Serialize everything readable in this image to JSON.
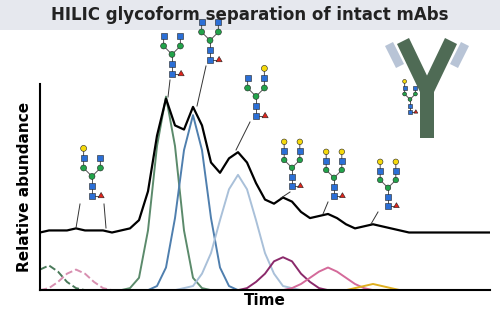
{
  "chart_data": {
    "type": "line",
    "title": "HILIC glycoform separation of intact mAbs",
    "x_label": "Time",
    "y_label": "Relative abundance",
    "x": [
      0,
      2,
      4,
      6,
      8,
      10,
      12,
      14,
      16,
      18,
      20,
      22,
      24,
      26,
      28,
      30,
      32,
      34,
      36,
      38,
      40,
      42,
      44,
      46,
      48,
      50,
      52,
      54,
      56,
      58,
      60,
      62,
      64,
      66,
      68,
      70,
      72,
      74,
      76,
      78,
      80,
      82,
      84,
      86,
      88,
      90,
      92,
      94,
      96,
      98,
      100
    ],
    "xlim": [
      0,
      100
    ],
    "ylim": [
      0,
      100
    ],
    "tick_labels": false,
    "series": [
      {
        "color": "#4a7a5a",
        "line_style": "dashed",
        "values": [
          10,
          12,
          9,
          4,
          1,
          0,
          0,
          0,
          0,
          0,
          0,
          0,
          0,
          0,
          0,
          0,
          0,
          0,
          0,
          0,
          0,
          0,
          0,
          0,
          0,
          0,
          0,
          0,
          0,
          0,
          0,
          0,
          0,
          0,
          0,
          0,
          0,
          0,
          0,
          0,
          0,
          0,
          0,
          0,
          0,
          0,
          0,
          0,
          0,
          0,
          0
        ]
      },
      {
        "color": "#d88fb0",
        "line_style": "dashed",
        "values": [
          0,
          1,
          4,
          8,
          10,
          8,
          4,
          1,
          0,
          0,
          0,
          0,
          0,
          0,
          0,
          0,
          0,
          0,
          0,
          0,
          0,
          0,
          0,
          0,
          0,
          0,
          0,
          0,
          0,
          0,
          0,
          0,
          0,
          0,
          0,
          0,
          0,
          0,
          0,
          0,
          0,
          0,
          0,
          0,
          0,
          0,
          0,
          0,
          0,
          0,
          0
        ]
      },
      {
        "color": "#5b8a6b",
        "line_style": "solid",
        "values": [
          0,
          0,
          0,
          0,
          0,
          0,
          0,
          0,
          0,
          0,
          1,
          6,
          29,
          70,
          94,
          70,
          29,
          6,
          1,
          0,
          0,
          0,
          0,
          0,
          0,
          0,
          0,
          0,
          0,
          0,
          0,
          0,
          0,
          0,
          0,
          0,
          0,
          0,
          0,
          0,
          0,
          0,
          0,
          0,
          0,
          0,
          0,
          0,
          0,
          0,
          0
        ]
      },
      {
        "color": "#4f7fae",
        "line_style": "solid",
        "values": [
          0,
          0,
          0,
          0,
          0,
          0,
          0,
          0,
          0,
          0,
          0,
          0,
          0,
          2,
          11,
          35,
          68,
          85,
          68,
          35,
          11,
          2,
          0,
          0,
          0,
          0,
          0,
          0,
          0,
          0,
          0,
          0,
          0,
          0,
          0,
          0,
          0,
          0,
          0,
          0,
          0,
          0,
          0,
          0,
          0,
          0,
          0,
          0,
          0,
          0,
          0
        ]
      },
      {
        "color": "#a9c0d9",
        "line_style": "solid",
        "values": [
          0,
          0,
          0,
          0,
          0,
          0,
          0,
          0,
          0,
          0,
          0,
          0,
          0,
          0,
          0,
          0,
          1,
          2,
          8,
          18,
          34,
          49,
          56,
          49,
          34,
          18,
          8,
          2,
          1,
          0,
          0,
          0,
          0,
          0,
          0,
          0,
          0,
          0,
          0,
          0,
          0,
          0,
          0,
          0,
          0,
          0,
          0,
          0,
          0,
          0,
          0
        ]
      },
      {
        "color": "#8b2a6b",
        "line_style": "solid",
        "values": [
          0,
          0,
          0,
          0,
          0,
          0,
          0,
          0,
          0,
          0,
          0,
          0,
          0,
          0,
          0,
          0,
          0,
          0,
          0,
          0,
          0,
          0,
          0,
          1,
          4,
          8,
          14,
          16,
          14,
          8,
          4,
          1,
          0,
          0,
          0,
          0,
          0,
          0,
          0,
          0,
          0,
          0,
          0,
          0,
          0,
          0,
          0,
          0,
          0,
          0,
          0
        ]
      },
      {
        "color": "#d46a9a",
        "line_style": "solid",
        "values": [
          0,
          0,
          0,
          0,
          0,
          0,
          0,
          0,
          0,
          0,
          0,
          0,
          0,
          0,
          0,
          0,
          0,
          0,
          0,
          0,
          0,
          0,
          0,
          0,
          0,
          0,
          0,
          0,
          1,
          3,
          6,
          9,
          11,
          9,
          6,
          3,
          1,
          0,
          0,
          0,
          0,
          0,
          0,
          0,
          0,
          0,
          0,
          0,
          0,
          0,
          0
        ]
      },
      {
        "color": "#e0b020",
        "line_style": "solid",
        "values": [
          0,
          0,
          0,
          0,
          0,
          0,
          0,
          0,
          0,
          0,
          0,
          0,
          0,
          0,
          0,
          0,
          0,
          0,
          0,
          0,
          0,
          0,
          0,
          0,
          0,
          0,
          0,
          0,
          0,
          0,
          0,
          0,
          0,
          0,
          0,
          1,
          2,
          3,
          2,
          1,
          0,
          0,
          0,
          0,
          0,
          0,
          0,
          0,
          0,
          0,
          0
        ]
      },
      {
        "color": "#000000",
        "line_style": "solid",
        "values": [
          28,
          29,
          29,
          29,
          30,
          29,
          29,
          29,
          28,
          29,
          30,
          34,
          48,
          75,
          93,
          80,
          78,
          89,
          80,
          62,
          57,
          64,
          67,
          62,
          52,
          44,
          42,
          45,
          43,
          38,
          35,
          36,
          37,
          35,
          32,
          30,
          31,
          32,
          31,
          30,
          29,
          28,
          28,
          28,
          28,
          28,
          28,
          28,
          28,
          28,
          28
        ]
      }
    ]
  }
}
